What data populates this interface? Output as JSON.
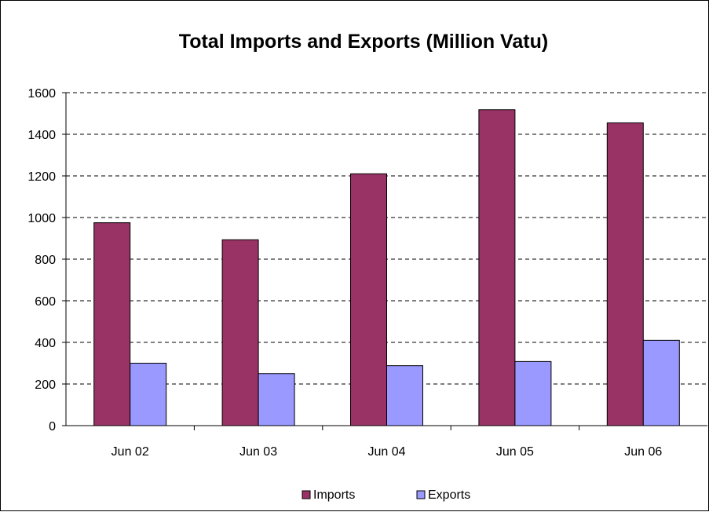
{
  "chart_data": {
    "type": "bar",
    "title": "Total Imports and Exports (Million Vatu)",
    "xlabel": "",
    "ylabel": "",
    "categories": [
      "Jun 02",
      "Jun 03",
      "Jun 04",
      "Jun 05",
      "Jun 06"
    ],
    "series": [
      {
        "name": "Imports",
        "values": [
          975,
          893,
          1210,
          1518,
          1455
        ],
        "color": "#993366"
      },
      {
        "name": "Exports",
        "values": [
          300,
          250,
          288,
          308,
          410
        ],
        "color": "#9999FF"
      }
    ],
    "ylim": [
      0,
      1600
    ],
    "yticks": [
      0,
      200,
      400,
      600,
      800,
      1000,
      1200,
      1400,
      1600
    ],
    "grid": true,
    "grid_style": "dashed",
    "legend_position": "bottom"
  }
}
